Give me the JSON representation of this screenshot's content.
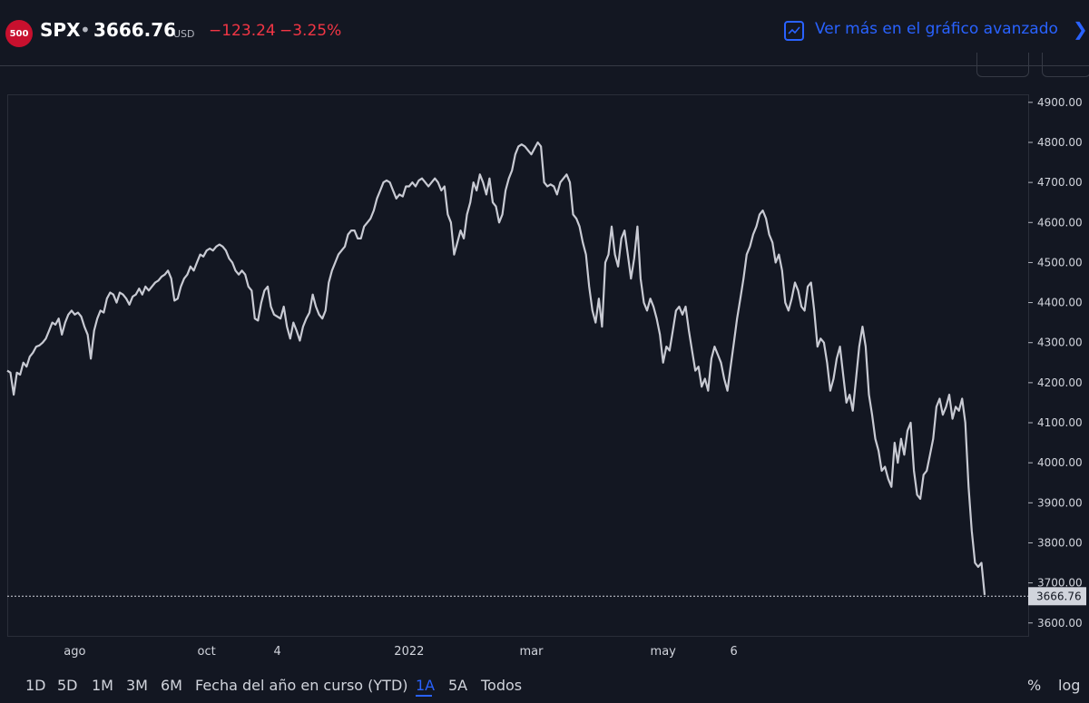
{
  "header": {
    "badge": "500",
    "ticker": "SPX",
    "separator": "•",
    "price": "3666.76",
    "currency": "USD",
    "change": "−123.24",
    "change_pct": "−3.25%",
    "advanced_link": "Ver más en el gráfico avanzado",
    "icons": [
      "chart-line-icon",
      "chevron-right-icon"
    ],
    "colors": {
      "down": "#f23645",
      "accent": "#2962ff",
      "line": "#c8cad3"
    }
  },
  "timeframes": {
    "items": [
      "1D",
      "5D",
      "1M",
      "3M",
      "6M",
      "Fecha del año en curso (YTD)",
      "1A",
      "5A",
      "Todos"
    ],
    "active": "1A",
    "right": [
      "%",
      "log"
    ]
  },
  "chart_data": {
    "type": "line",
    "title": "",
    "xlabel": "",
    "ylabel": "",
    "ylim": [
      3570,
      4920
    ],
    "y_ticks": [
      3600,
      3700,
      3800,
      3900,
      4000,
      4100,
      4200,
      4300,
      4400,
      4500,
      4600,
      4700,
      4800,
      4900
    ],
    "x_ticks": [
      {
        "label": "ago",
        "index": 21
      },
      {
        "label": "oct",
        "index": 62
      },
      {
        "label": "4",
        "index": 84
      },
      {
        "label": "2022",
        "index": 125
      },
      {
        "label": "mar",
        "index": 163
      },
      {
        "label": "may",
        "index": 204
      },
      {
        "label": "6",
        "index": 226
      }
    ],
    "last_value": "3666.76",
    "last_value_num": 3666.76,
    "series": [
      {
        "values": [
          4230,
          4225,
          4170,
          4225,
          4220,
          4250,
          4240,
          4265,
          4275,
          4290,
          4293,
          4300,
          4310,
          4330,
          4350,
          4345,
          4360,
          4320,
          4350,
          4370,
          4380,
          4370,
          4375,
          4365,
          4340,
          4320,
          4260,
          4330,
          4360,
          4380,
          4375,
          4410,
          4425,
          4420,
          4400,
          4425,
          4420,
          4410,
          4395,
          4415,
          4420,
          4435,
          4420,
          4440,
          4430,
          4440,
          4450,
          4455,
          4465,
          4470,
          4480,
          4460,
          4405,
          4410,
          4440,
          4460,
          4470,
          4490,
          4480,
          4500,
          4520,
          4515,
          4530,
          4535,
          4530,
          4540,
          4545,
          4540,
          4530,
          4510,
          4500,
          4480,
          4470,
          4480,
          4470,
          4440,
          4430,
          4360,
          4355,
          4400,
          4430,
          4440,
          4390,
          4370,
          4365,
          4360,
          4390,
          4340,
          4310,
          4350,
          4330,
          4305,
          4340,
          4360,
          4375,
          4420,
          4390,
          4370,
          4360,
          4380,
          4450,
          4480,
          4500,
          4520,
          4530,
          4540,
          4570,
          4580,
          4580,
          4560,
          4560,
          4590,
          4600,
          4610,
          4630,
          4660,
          4680,
          4700,
          4705,
          4700,
          4680,
          4660,
          4670,
          4665,
          4690,
          4690,
          4700,
          4690,
          4705,
          4710,
          4700,
          4690,
          4700,
          4710,
          4700,
          4680,
          4690,
          4620,
          4600,
          4520,
          4550,
          4580,
          4560,
          4620,
          4650,
          4700,
          4680,
          4720,
          4700,
          4670,
          4710,
          4650,
          4640,
          4600,
          4620,
          4680,
          4710,
          4730,
          4770,
          4790,
          4795,
          4790,
          4780,
          4770,
          4785,
          4800,
          4790,
          4700,
          4690,
          4695,
          4690,
          4670,
          4700,
          4710,
          4720,
          4700,
          4620,
          4610,
          4590,
          4550,
          4520,
          4440,
          4380,
          4350,
          4410,
          4340,
          4500,
          4520,
          4590,
          4520,
          4490,
          4560,
          4580,
          4520,
          4460,
          4510,
          4590,
          4460,
          4400,
          4380,
          4410,
          4390,
          4360,
          4320,
          4250,
          4290,
          4280,
          4330,
          4380,
          4390,
          4370,
          4390,
          4330,
          4280,
          4230,
          4240,
          4190,
          4210,
          4180,
          4260,
          4290,
          4270,
          4250,
          4210,
          4180,
          4240,
          4300,
          4360,
          4410,
          4460,
          4520,
          4540,
          4570,
          4590,
          4620,
          4630,
          4610,
          4570,
          4550,
          4500,
          4520,
          4480,
          4400,
          4380,
          4410,
          4450,
          4430,
          4390,
          4380,
          4440,
          4450,
          4380,
          4290,
          4310,
          4300,
          4250,
          4180,
          4210,
          4260,
          4290,
          4220,
          4150,
          4170,
          4130,
          4210,
          4290,
          4340,
          4290,
          4170,
          4120,
          4060,
          4030,
          3980,
          3990,
          3960,
          3940,
          4050,
          4000,
          4060,
          4020,
          4080,
          4100,
          3980,
          3920,
          3910,
          3970,
          3980,
          4020,
          4060,
          4140,
          4160,
          4120,
          4140,
          4170,
          4110,
          4140,
          4130,
          4160,
          4100,
          3940,
          3830,
          3750,
          3740,
          3750,
          3670
        ]
      }
    ]
  }
}
